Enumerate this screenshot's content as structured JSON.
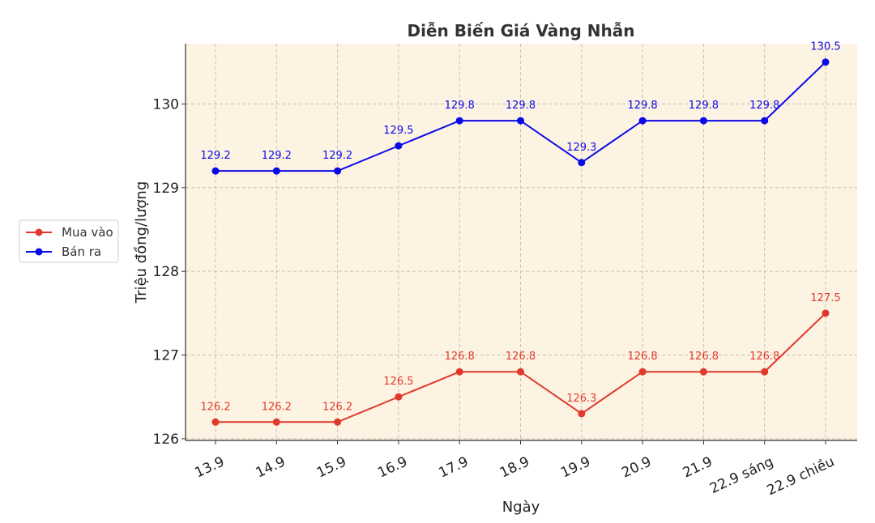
{
  "chart_data": {
    "type": "line",
    "title": "Diễn Biến Giá Vàng Nhẫn",
    "xlabel": "Ngày",
    "ylabel": "Triệu đồng/lượng",
    "ylim": [
      125.98,
      130.72
    ],
    "yticks": [
      126,
      127,
      128,
      129,
      130
    ],
    "grid": true,
    "legend_position": "left",
    "plot_background": "#fdf3e3",
    "categories": [
      "13.9",
      "14.9",
      "15.9",
      "16.9",
      "17.9",
      "18.9",
      "19.9",
      "20.9",
      "21.9",
      "22.9 sáng",
      "22.9 chiều"
    ],
    "series": [
      {
        "name": "Mua vào",
        "color": "#e0392b",
        "values": [
          126.2,
          126.2,
          126.2,
          126.5,
          126.8,
          126.8,
          126.3,
          126.8,
          126.8,
          126.8,
          127.5
        ]
      },
      {
        "name": "Bán ra",
        "color": "#0a0ae6",
        "values": [
          129.2,
          129.2,
          129.2,
          129.5,
          129.8,
          129.8,
          129.3,
          129.8,
          129.8,
          129.8,
          130.5
        ]
      }
    ]
  }
}
